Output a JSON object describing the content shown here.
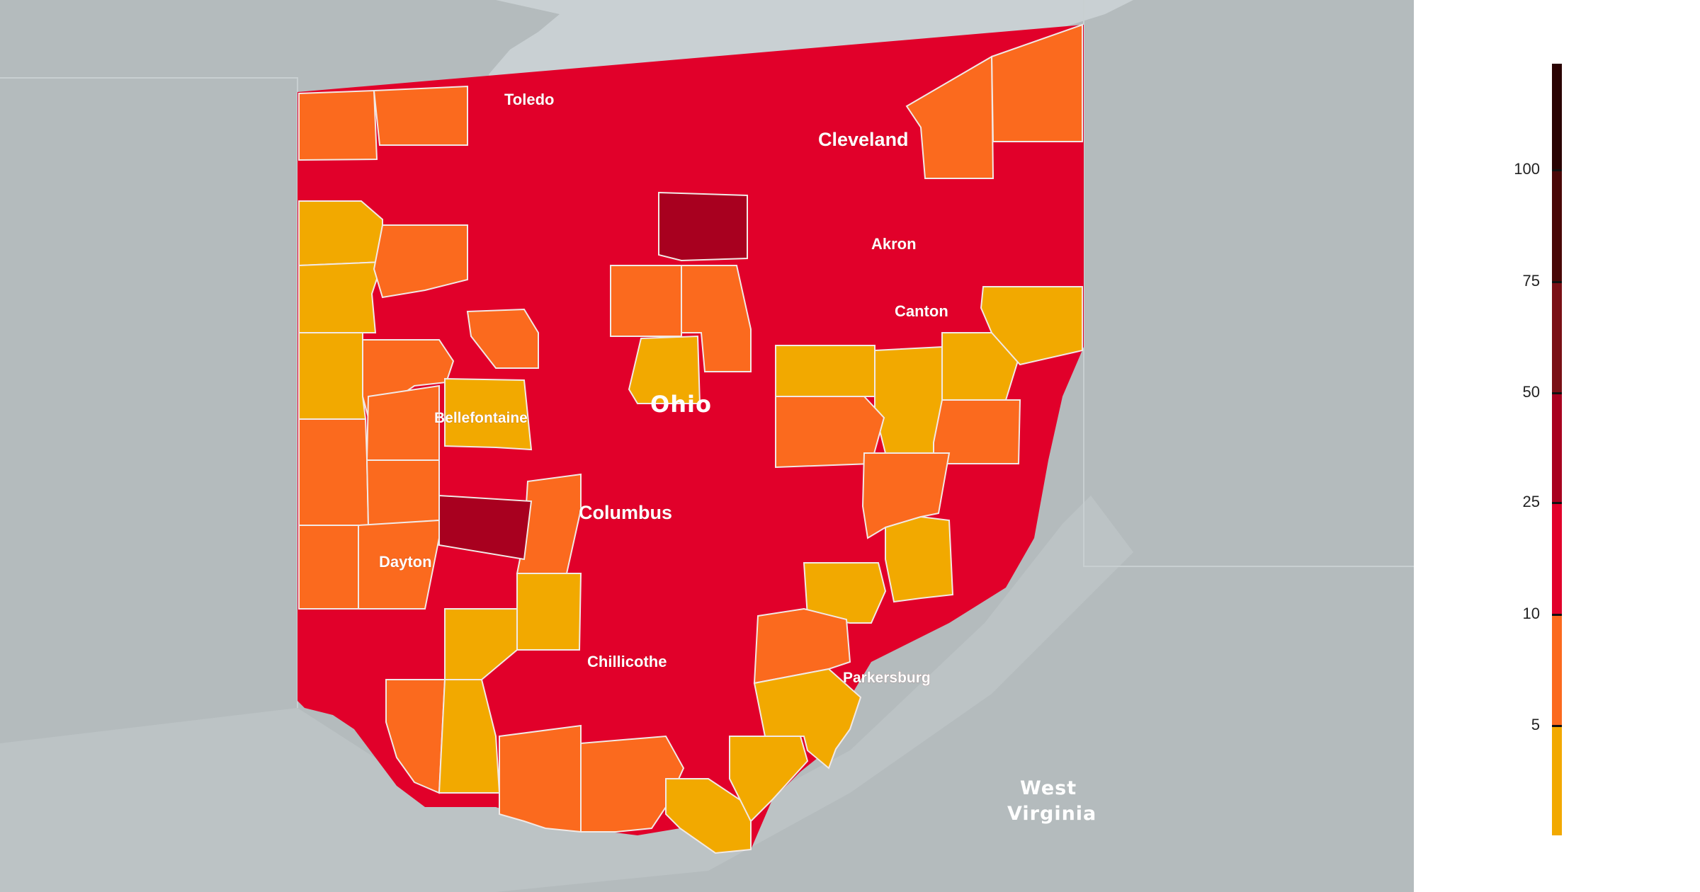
{
  "map": {
    "labels": {
      "toledo": "Toledo",
      "cleveland": "Cleveland",
      "akron": "Akron",
      "canton": "Canton",
      "ohio": "Ohio",
      "bellefontaine": "Bellefontaine",
      "columbus": "Columbus",
      "dayton": "Dayton",
      "chillicothe": "Chillicothe",
      "parkersburg": "Parkersburg",
      "west_virginia_line1": "West",
      "west_virginia_line2": "Virginia"
    },
    "colors": {
      "water": "#c9d0d3",
      "land": "#b4bbbd",
      "border": "#f1e9e6"
    }
  },
  "legend": {
    "ticks": [
      "100",
      "75",
      "50",
      "25",
      "10",
      "5"
    ],
    "bins": [
      {
        "range": "<5",
        "color": "#f2a900"
      },
      {
        "range": "5-10",
        "color": "#fb6a1e"
      },
      {
        "range": "10-25",
        "color": "#e1002a"
      },
      {
        "range": "25-50",
        "color": "#a8001f"
      },
      {
        "range": "50-75",
        "color": "#7a1016"
      },
      {
        "range": "75-100",
        "color": "#4a0808"
      },
      {
        "range": ">100",
        "color": "#2a0303"
      }
    ]
  }
}
